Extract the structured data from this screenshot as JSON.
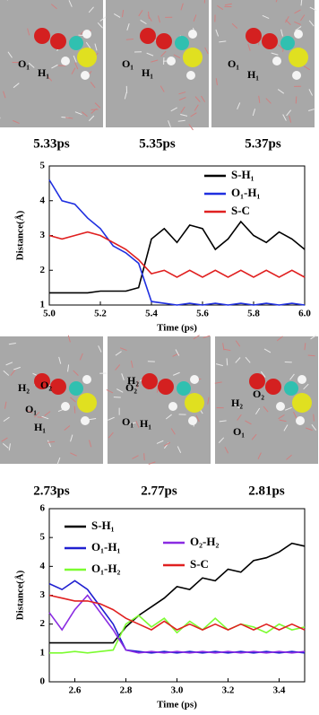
{
  "snapshots": [
    {
      "time": "5.33ps",
      "labels": [
        "O₁",
        "H₁"
      ]
    },
    {
      "time": "5.35ps",
      "labels": [
        "O₁",
        "H₁"
      ]
    },
    {
      "time": "5.37ps",
      "labels": [
        "O₁",
        "H₁"
      ]
    },
    {
      "time": "2.73ps",
      "labels": [
        "H₂",
        "O₂",
        "O₁",
        "H₁"
      ]
    },
    {
      "time": "2.77ps",
      "labels": [
        "O₂",
        "H₂",
        "O₁",
        "H₁"
      ]
    },
    {
      "time": "2.81ps",
      "labels": [
        "H₂",
        "O₂",
        "O₁"
      ]
    }
  ],
  "chart_data": [
    {
      "type": "line",
      "xlabel": "Time (ps)",
      "ylabel": "Distance(Å)",
      "x": [
        5.0,
        5.05,
        5.1,
        5.15,
        5.2,
        5.25,
        5.3,
        5.35,
        5.4,
        5.45,
        5.5,
        5.55,
        5.6,
        5.65,
        5.7,
        5.75,
        5.8,
        5.85,
        5.9,
        5.95,
        6.0
      ],
      "xlim": [
        5.0,
        6.0
      ],
      "xticks": [
        {
          "value": 5.0,
          "label": "5.0"
        },
        {
          "value": 5.2,
          "label": "5.2"
        },
        {
          "value": 5.4,
          "label": "5.4"
        },
        {
          "value": 5.6,
          "label": "5.6"
        },
        {
          "value": 5.8,
          "label": "5.8"
        },
        {
          "value": 6.0,
          "label": "6.0"
        }
      ],
      "ylim": [
        1,
        5
      ],
      "yticks": [
        1,
        2,
        3,
        4,
        5
      ],
      "series": [
        {
          "name": "S-H₁",
          "color": "#000000",
          "values": [
            1.35,
            1.35,
            1.35,
            1.35,
            1.4,
            1.4,
            1.4,
            1.5,
            2.9,
            3.2,
            2.8,
            3.3,
            3.2,
            2.6,
            2.9,
            3.4,
            3.0,
            2.8,
            3.1,
            2.9,
            2.6
          ]
        },
        {
          "name": "O₁-H₁",
          "color": "#1f2fe0",
          "values": [
            4.6,
            4.0,
            3.9,
            3.5,
            3.2,
            2.7,
            2.5,
            2.2,
            1.1,
            1.05,
            1.0,
            1.05,
            1.0,
            1.05,
            1.0,
            1.05,
            1.0,
            1.05,
            1.0,
            1.05,
            1.0
          ]
        },
        {
          "name": "S-C",
          "color": "#e02020",
          "values": [
            3.0,
            2.9,
            3.0,
            3.1,
            3.0,
            2.8,
            2.6,
            2.3,
            1.9,
            2.0,
            1.8,
            2.0,
            1.8,
            2.0,
            1.8,
            2.0,
            1.8,
            2.0,
            1.8,
            2.0,
            1.8
          ]
        }
      ]
    },
    {
      "type": "line",
      "xlabel": "Time (ps)",
      "ylabel": "Distance(Å)",
      "x": [
        2.5,
        2.55,
        2.6,
        2.65,
        2.7,
        2.75,
        2.8,
        2.85,
        2.9,
        2.95,
        3.0,
        3.05,
        3.1,
        3.15,
        3.2,
        3.25,
        3.3,
        3.35,
        3.4,
        3.45,
        3.5
      ],
      "xlim": [
        2.5,
        3.5
      ],
      "xticks": [
        {
          "value": 2.6,
          "label": "2.6"
        },
        {
          "value": 2.8,
          "label": "2.8"
        },
        {
          "value": 3.0,
          "label": "3.0"
        },
        {
          "value": 3.2,
          "label": "3.2"
        },
        {
          "value": 3.4,
          "label": "3.4"
        }
      ],
      "ylim": [
        0,
        6
      ],
      "yticks": [
        0,
        1,
        2,
        3,
        4,
        5,
        6
      ],
      "series": [
        {
          "name": "S-H₁",
          "color": "#000000",
          "values": [
            1.35,
            1.35,
            1.35,
            1.35,
            1.35,
            1.35,
            1.9,
            2.3,
            2.6,
            2.9,
            3.3,
            3.2,
            3.6,
            3.5,
            3.9,
            3.8,
            4.2,
            4.3,
            4.5,
            4.8,
            4.7
          ]
        },
        {
          "name": "O₁-H₁",
          "color": "#2020d0",
          "values": [
            3.4,
            3.2,
            3.5,
            3.2,
            2.6,
            2.0,
            1.1,
            1.05,
            1.0,
            1.05,
            1.0,
            1.05,
            1.0,
            1.05,
            1.0,
            1.05,
            1.0,
            1.05,
            1.0,
            1.05,
            1.0
          ]
        },
        {
          "name": "O₁-H₂",
          "color": "#7cfc30",
          "values": [
            1.0,
            1.0,
            1.05,
            1.0,
            1.05,
            1.1,
            2.0,
            2.3,
            1.9,
            2.2,
            1.7,
            2.1,
            1.8,
            2.2,
            1.8,
            2.0,
            1.9,
            1.7,
            2.0,
            1.8,
            1.9
          ]
        },
        {
          "name": "O₂-H₂",
          "color": "#8a2be2",
          "values": [
            2.4,
            1.8,
            2.5,
            3.0,
            2.4,
            1.8,
            1.1,
            1.0,
            1.05,
            1.0,
            1.05,
            1.0,
            1.05,
            1.0,
            1.05,
            1.0,
            1.05,
            1.0,
            1.05,
            1.0,
            1.05
          ]
        },
        {
          "name": "S-C",
          "color": "#e02020",
          "values": [
            3.0,
            2.9,
            2.8,
            2.8,
            2.7,
            2.5,
            2.2,
            2.0,
            1.8,
            2.1,
            1.8,
            2.0,
            1.8,
            2.0,
            1.8,
            2.0,
            1.8,
            2.0,
            1.8,
            2.0,
            1.8
          ]
        }
      ]
    }
  ]
}
